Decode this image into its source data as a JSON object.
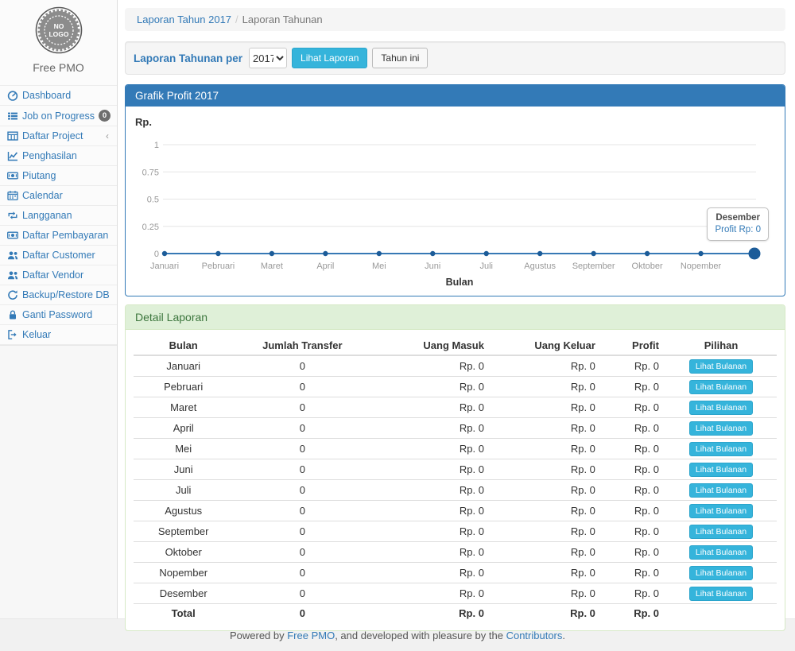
{
  "sidebar": {
    "logo_line1": "NO",
    "logo_line2": "LOGO",
    "brand": "Free PMO",
    "items": [
      {
        "label": "Dashboard",
        "icon": "dashboard-icon"
      },
      {
        "label": "Job on Progress",
        "icon": "list-icon",
        "badge": "0"
      },
      {
        "label": "Daftar Project",
        "icon": "table-icon",
        "chevron": "‹"
      },
      {
        "label": "Penghasilan",
        "icon": "line-chart-icon"
      },
      {
        "label": "Piutang",
        "icon": "money-icon"
      },
      {
        "label": "Calendar",
        "icon": "calendar-icon"
      },
      {
        "label": "Langganan",
        "icon": "retweet-icon"
      },
      {
        "label": "Daftar Pembayaran",
        "icon": "money-icon"
      },
      {
        "label": "Daftar Customer",
        "icon": "users-icon"
      },
      {
        "label": "Daftar Vendor",
        "icon": "users-icon"
      },
      {
        "label": "Backup/Restore DB",
        "icon": "refresh-icon"
      },
      {
        "label": "Ganti Password",
        "icon": "lock-icon"
      },
      {
        "label": "Keluar",
        "icon": "sign-out-icon"
      }
    ]
  },
  "breadcrumb": {
    "link": "Laporan Tahun 2017",
    "separator": "/",
    "current": "Laporan Tahunan"
  },
  "filter": {
    "label": "Laporan Tahunan per",
    "year_selected": "2017",
    "view_button": "Lihat Laporan",
    "this_year_button": "Tahun ini"
  },
  "chart_panel": {
    "title": "Grafik Profit 2017"
  },
  "chart_data": {
    "type": "line",
    "categories": [
      "Januari",
      "Pebruari",
      "Maret",
      "April",
      "Mei",
      "Juni",
      "Juli",
      "Agustus",
      "September",
      "Oktober",
      "Nopember",
      "Desember"
    ],
    "values": [
      0,
      0,
      0,
      0,
      0,
      0,
      0,
      0,
      0,
      0,
      0,
      0
    ],
    "visible_x_labels": [
      "Januari",
      "Pebruari",
      "Maret",
      "April",
      "Mei",
      "Juni",
      "Juli",
      "Agustus",
      "September",
      "Oktober",
      "Nopember"
    ],
    "title": "Grafik Profit 2017",
    "xlabel": "Bulan",
    "ylabel": "Rp.",
    "yticks": [
      0,
      0.25,
      0.5,
      0.75,
      1
    ],
    "ylim": [
      0,
      1.25
    ],
    "grid": true,
    "legend": "none",
    "line_color": "#3779b5",
    "point_color": "#1c5c99",
    "highlighted_point": "Desember",
    "tooltip": {
      "title": "Desember",
      "value": "Profit Rp: 0"
    }
  },
  "detail_panel": {
    "title": "Detail Laporan",
    "table": {
      "columns": [
        "Bulan",
        "Jumlah Transfer",
        "Uang Masuk",
        "Uang Keluar",
        "Profit",
        "Pilihan"
      ],
      "action_label": "Lihat Bulanan",
      "rows": [
        {
          "bulan": "Januari",
          "jumlah_transfer": "0",
          "uang_masuk": "Rp. 0",
          "uang_keluar": "Rp. 0",
          "profit": "Rp. 0"
        },
        {
          "bulan": "Pebruari",
          "jumlah_transfer": "0",
          "uang_masuk": "Rp. 0",
          "uang_keluar": "Rp. 0",
          "profit": "Rp. 0"
        },
        {
          "bulan": "Maret",
          "jumlah_transfer": "0",
          "uang_masuk": "Rp. 0",
          "uang_keluar": "Rp. 0",
          "profit": "Rp. 0"
        },
        {
          "bulan": "April",
          "jumlah_transfer": "0",
          "uang_masuk": "Rp. 0",
          "uang_keluar": "Rp. 0",
          "profit": "Rp. 0"
        },
        {
          "bulan": "Mei",
          "jumlah_transfer": "0",
          "uang_masuk": "Rp. 0",
          "uang_keluar": "Rp. 0",
          "profit": "Rp. 0"
        },
        {
          "bulan": "Juni",
          "jumlah_transfer": "0",
          "uang_masuk": "Rp. 0",
          "uang_keluar": "Rp. 0",
          "profit": "Rp. 0"
        },
        {
          "bulan": "Juli",
          "jumlah_transfer": "0",
          "uang_masuk": "Rp. 0",
          "uang_keluar": "Rp. 0",
          "profit": "Rp. 0"
        },
        {
          "bulan": "Agustus",
          "jumlah_transfer": "0",
          "uang_masuk": "Rp. 0",
          "uang_keluar": "Rp. 0",
          "profit": "Rp. 0"
        },
        {
          "bulan": "September",
          "jumlah_transfer": "0",
          "uang_masuk": "Rp. 0",
          "uang_keluar": "Rp. 0",
          "profit": "Rp. 0"
        },
        {
          "bulan": "Oktober",
          "jumlah_transfer": "0",
          "uang_masuk": "Rp. 0",
          "uang_keluar": "Rp. 0",
          "profit": "Rp. 0"
        },
        {
          "bulan": "Nopember",
          "jumlah_transfer": "0",
          "uang_masuk": "Rp. 0",
          "uang_keluar": "Rp. 0",
          "profit": "Rp. 0"
        },
        {
          "bulan": "Desember",
          "jumlah_transfer": "0",
          "uang_masuk": "Rp. 0",
          "uang_keluar": "Rp. 0",
          "profit": "Rp. 0"
        }
      ],
      "total_row": {
        "bulan": "Total",
        "jumlah_transfer": "0",
        "uang_masuk": "Rp. 0",
        "uang_keluar": "Rp. 0",
        "profit": "Rp. 0"
      }
    }
  },
  "footer": {
    "prefix": "Powered by ",
    "link1": "Free PMO",
    "middle": ", and developed with pleasure by the ",
    "link2": "Contributors",
    "suffix": "."
  },
  "colors": {
    "accent_blue": "#337ab7",
    "panel_primary_header": "#337ab7",
    "panel_success_header_bg": "#dff0d8",
    "panel_success_text": "#3c763d",
    "info_button": "#35b4db",
    "badge_gray": "#6e6e6e",
    "grid_line": "#e6e6e6",
    "tick_text": "#999999"
  }
}
